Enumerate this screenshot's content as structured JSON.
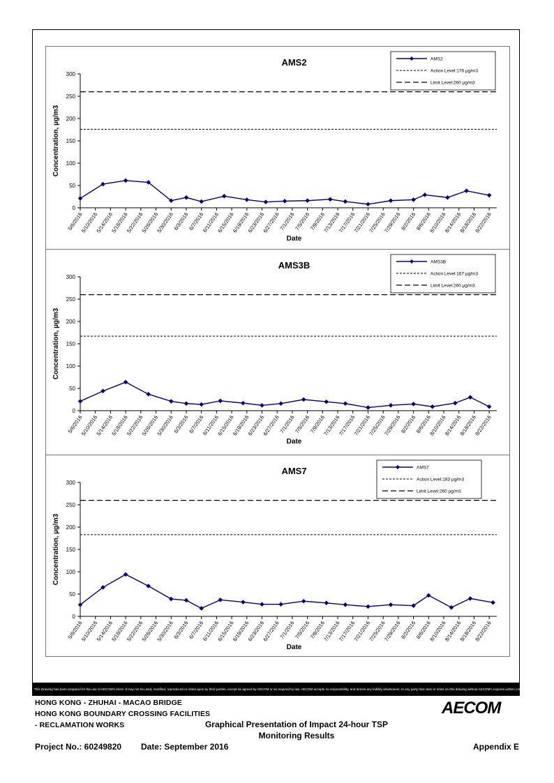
{
  "chart_data": [
    {
      "type": "line",
      "title": "AMS2",
      "xlabel": "Date",
      "ylabel": "Concentration, µg/m3",
      "ylim": [
        0,
        300
      ],
      "yticks": [
        0,
        50,
        100,
        150,
        200,
        250,
        300
      ],
      "grid": false,
      "legend_position": "top-right",
      "x_tick_labels": [
        "5/6/2016",
        "5/10/2016",
        "5/14/2016",
        "5/18/2016",
        "5/22/2016",
        "5/26/2016",
        "5/30/2016",
        "6/3/2016",
        "6/7/2016",
        "6/11/2016",
        "6/15/2016",
        "6/19/2016",
        "6/23/2016",
        "6/27/2016",
        "7/1/2016",
        "7/5/2016",
        "7/9/2016",
        "7/13/2016",
        "7/17/2016",
        "7/21/2016",
        "7/25/2016",
        "7/29/2016",
        "8/2/2016",
        "8/6/2016",
        "8/10/2016",
        "8/14/2016",
        "8/18/2016",
        "8/22/2016"
      ],
      "x_range": [
        "2016-05-06",
        "2016-08-24"
      ],
      "series": [
        {
          "name": "AMS2",
          "x": [
            "2016-05-06",
            "2016-05-12",
            "2016-05-18",
            "2016-05-24",
            "2016-05-30",
            "2016-06-03",
            "2016-06-07",
            "2016-06-13",
            "2016-06-19",
            "2016-06-24",
            "2016-06-29",
            "2016-07-05",
            "2016-07-11",
            "2016-07-15",
            "2016-07-21",
            "2016-07-27",
            "2016-08-02",
            "2016-08-05",
            "2016-08-11",
            "2016-08-16",
            "2016-08-22"
          ],
          "y": [
            21,
            53,
            61,
            57,
            16,
            23,
            14,
            26,
            18,
            13,
            15,
            16,
            19,
            14,
            8,
            16,
            18,
            29,
            23,
            38,
            28
          ]
        },
        {
          "name": "Action Level:176 µg/m3",
          "y_constant": 176
        },
        {
          "name": "Limit Level:260 µg/m3",
          "y_constant": 260
        }
      ]
    },
    {
      "type": "line",
      "title": "AMS3B",
      "xlabel": "Date",
      "ylabel": "Concentration, µg/m3",
      "ylim": [
        0,
        300
      ],
      "yticks": [
        0,
        50,
        100,
        150,
        200,
        250,
        300
      ],
      "grid": false,
      "legend_position": "top-right",
      "x_tick_labels": [
        "5/6/2016",
        "5/10/2016",
        "5/14/2016",
        "5/18/2016",
        "5/22/2016",
        "5/26/2016",
        "5/30/2016",
        "6/3/2016",
        "6/7/2016",
        "6/11/2016",
        "6/15/2016",
        "6/19/2016",
        "6/23/2016",
        "6/27/2016",
        "7/1/2016",
        "7/5/2016",
        "7/9/2016",
        "7/13/2016",
        "7/17/2016",
        "7/21/2016",
        "7/25/2016",
        "7/29/2016",
        "8/2/2016",
        "8/6/2016",
        "8/10/2016",
        "8/14/2016",
        "8/18/2016",
        "8/22/2016"
      ],
      "x_range": [
        "2016-05-06",
        "2016-08-24"
      ],
      "series": [
        {
          "name": "AMS3B",
          "x": [
            "2016-05-06",
            "2016-05-12",
            "2016-05-18",
            "2016-05-24",
            "2016-05-30",
            "2016-06-03",
            "2016-06-07",
            "2016-06-12",
            "2016-06-18",
            "2016-06-23",
            "2016-06-28",
            "2016-07-04",
            "2016-07-10",
            "2016-07-15",
            "2016-07-21",
            "2016-07-27",
            "2016-08-02",
            "2016-08-07",
            "2016-08-13",
            "2016-08-17",
            "2016-08-22"
          ],
          "y": [
            21,
            44,
            64,
            37,
            21,
            16,
            14,
            22,
            17,
            12,
            16,
            25,
            20,
            16,
            7,
            12,
            15,
            9,
            17,
            30,
            9
          ]
        },
        {
          "name": "Action Level:167 µg/m3",
          "y_constant": 167
        },
        {
          "name": "Limit Level:260 µg/m3",
          "y_constant": 260
        }
      ]
    },
    {
      "type": "line",
      "title": "AMS7",
      "xlabel": "Date",
      "ylabel": "Concentration, µg/m3",
      "ylim": [
        0,
        300
      ],
      "yticks": [
        0,
        50,
        100,
        150,
        200,
        250,
        300
      ],
      "grid": false,
      "legend_position": "top-right",
      "x_tick_labels": [
        "5/6/2016",
        "5/10/2016",
        "5/14/2016",
        "5/18/2016",
        "5/22/2016",
        "5/26/2016",
        "5/30/2016",
        "6/3/2016",
        "6/7/2016",
        "6/11/2016",
        "6/15/2016",
        "6/19/2016",
        "6/23/2016",
        "6/27/2016",
        "7/1/2016",
        "7/5/2016",
        "7/9/2016",
        "7/13/2016",
        "7/17/2016",
        "7/21/2016",
        "7/25/2016",
        "7/29/2016",
        "8/2/2016",
        "8/6/2016",
        "8/10/2016",
        "8/14/2016",
        "8/18/2016",
        "8/22/2016"
      ],
      "x_range": [
        "2016-05-06",
        "2016-08-24"
      ],
      "series": [
        {
          "name": "AMS7",
          "x": [
            "2016-05-06",
            "2016-05-12",
            "2016-05-18",
            "2016-05-24",
            "2016-05-30",
            "2016-06-03",
            "2016-06-07",
            "2016-06-12",
            "2016-06-18",
            "2016-06-23",
            "2016-06-28",
            "2016-07-04",
            "2016-07-10",
            "2016-07-15",
            "2016-07-21",
            "2016-07-27",
            "2016-08-02",
            "2016-08-06",
            "2016-08-12",
            "2016-08-17",
            "2016-08-23"
          ],
          "y": [
            26,
            65,
            94,
            68,
            39,
            36,
            18,
            37,
            32,
            27,
            27,
            34,
            30,
            26,
            22,
            26,
            24,
            47,
            20,
            40,
            31
          ]
        },
        {
          "name": "Action Level:183 µg/m3",
          "y_constant": 183
        },
        {
          "name": "Limit Level:260 µg/m3",
          "y_constant": 260
        }
      ]
    }
  ],
  "footer": {
    "disclaimer": "This Drawing has been prepared for the use of AECOM's client. It may not be used, modified, reproduced or relied upon by third parties, except as agreed by AECOM or as required by law. AECOM accepts no responsibility, and denies any liability whatsoever, to any party that uses or relies on this drawing without AECOM's express written consent.",
    "project_line1": "HONG KONG - ZHUHAI - MACAO BRIDGE",
    "project_line2": "HONG KONG BOUNDARY CROSSING FACILITIES",
    "project_line3": "- RECLAMATION WORKS",
    "subtitle_line1": "Graphical Presentation of Impact 24-hour TSP",
    "subtitle_line2": "Monitoring Results",
    "logo": "AECOM",
    "project_no": "Project No.: 60249820",
    "date": "Date: September 2016",
    "appendix": "Appendix E"
  }
}
